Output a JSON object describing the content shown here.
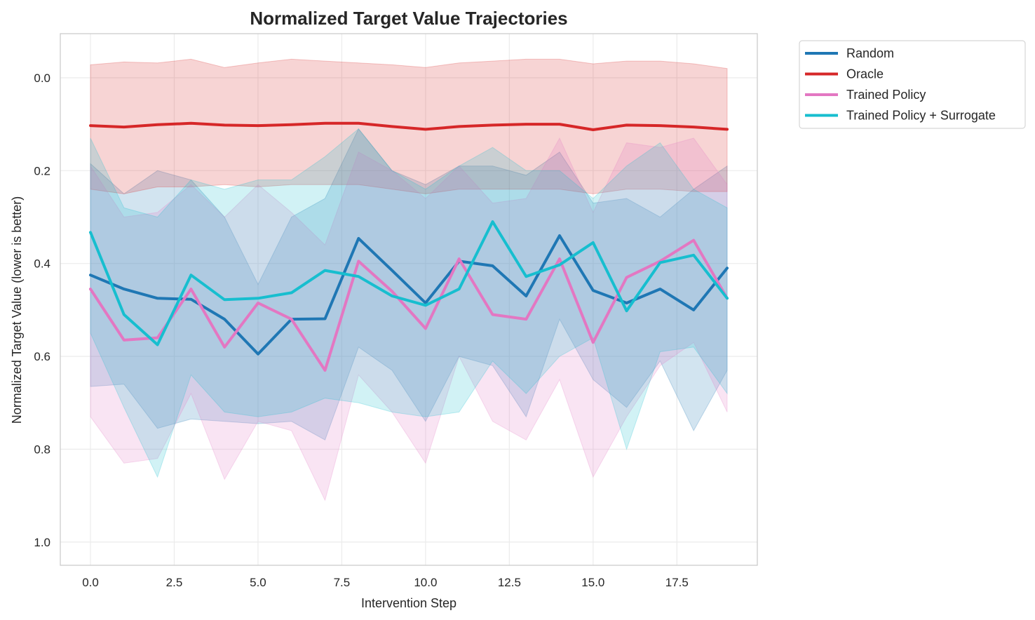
{
  "chart_data": {
    "type": "line",
    "title": "Normalized Target Value Trajectories",
    "xlabel": "Intervention Step",
    "ylabel": "Normalized Target Value (lower is better)",
    "xlim": [
      -0.9,
      19.9
    ],
    "ylim": [
      1.05,
      -0.095
    ],
    "y_inverted": true,
    "grid": true,
    "legend_position": "outside-top-right",
    "x_ticks": [
      0.0,
      2.5,
      5.0,
      7.5,
      10.0,
      12.5,
      15.0,
      17.5
    ],
    "x_tick_labels": [
      "0.0",
      "2.5",
      "5.0",
      "7.5",
      "10.0",
      "12.5",
      "15.0",
      "17.5"
    ],
    "y_ticks": [
      0.0,
      0.2,
      0.4,
      0.6,
      0.8,
      1.0
    ],
    "y_tick_labels": [
      "0.0",
      "0.2",
      "0.4",
      "0.6",
      "0.8",
      "1.0"
    ],
    "x": [
      0,
      1,
      2,
      3,
      4,
      5,
      6,
      7,
      8,
      9,
      10,
      11,
      12,
      13,
      14,
      15,
      16,
      17,
      18,
      19
    ],
    "series": [
      {
        "name": "Random",
        "color": "#1f77b4",
        "mean": [
          0.425,
          0.455,
          0.475,
          0.477,
          0.52,
          0.595,
          0.52,
          0.519,
          0.346,
          0.415,
          0.485,
          0.395,
          0.405,
          0.47,
          0.34,
          0.458,
          0.485,
          0.455,
          0.5,
          0.41
        ],
        "band_low": [
          0.185,
          0.25,
          0.2,
          0.22,
          0.3,
          0.445,
          0.3,
          0.26,
          0.11,
          0.2,
          0.23,
          0.19,
          0.19,
          0.21,
          0.16,
          0.27,
          0.26,
          0.3,
          0.24,
          0.19
        ],
        "band_high": [
          0.665,
          0.66,
          0.755,
          0.735,
          0.74,
          0.745,
          0.74,
          0.78,
          0.58,
          0.63,
          0.74,
          0.6,
          0.62,
          0.73,
          0.52,
          0.65,
          0.71,
          0.61,
          0.76,
          0.63
        ]
      },
      {
        "name": "Oracle",
        "color": "#d62728",
        "mean": [
          0.103,
          0.106,
          0.101,
          0.098,
          0.102,
          0.103,
          0.101,
          0.098,
          0.098,
          0.105,
          0.111,
          0.105,
          0.102,
          0.1,
          0.1,
          0.112,
          0.102,
          0.103,
          0.106,
          0.111
        ],
        "band_low": [
          -0.028,
          -0.034,
          -0.032,
          -0.04,
          -0.022,
          -0.032,
          -0.04,
          -0.036,
          -0.032,
          -0.028,
          -0.022,
          -0.032,
          -0.036,
          -0.04,
          -0.04,
          -0.03,
          -0.036,
          -0.036,
          -0.03,
          -0.02
        ],
        "band_high": [
          0.24,
          0.25,
          0.235,
          0.235,
          0.23,
          0.235,
          0.23,
          0.23,
          0.23,
          0.24,
          0.25,
          0.24,
          0.24,
          0.24,
          0.24,
          0.25,
          0.24,
          0.24,
          0.245,
          0.245
        ]
      },
      {
        "name": "Trained Policy",
        "color": "#e377c2",
        "mean": [
          0.455,
          0.565,
          0.56,
          0.455,
          0.58,
          0.485,
          0.52,
          0.63,
          0.395,
          0.46,
          0.54,
          0.39,
          0.51,
          0.52,
          0.39,
          0.57,
          0.43,
          0.395,
          0.35,
          0.475
        ],
        "band_low": [
          0.19,
          0.3,
          0.29,
          0.23,
          0.3,
          0.23,
          0.29,
          0.36,
          0.16,
          0.2,
          0.26,
          0.19,
          0.27,
          0.26,
          0.13,
          0.29,
          0.14,
          0.15,
          0.13,
          0.23
        ],
        "band_high": [
          0.73,
          0.83,
          0.82,
          0.68,
          0.865,
          0.74,
          0.76,
          0.91,
          0.64,
          0.72,
          0.83,
          0.6,
          0.74,
          0.78,
          0.65,
          0.86,
          0.73,
          0.62,
          0.57,
          0.72
        ]
      },
      {
        "name": "Trained Policy + Surrogate",
        "color": "#17becf",
        "mean": [
          0.333,
          0.51,
          0.575,
          0.425,
          0.478,
          0.475,
          0.463,
          0.415,
          0.428,
          0.47,
          0.49,
          0.455,
          0.31,
          0.428,
          0.403,
          0.355,
          0.502,
          0.398,
          0.382,
          0.475
        ],
        "band_low": [
          0.13,
          0.28,
          0.3,
          0.22,
          0.24,
          0.22,
          0.22,
          0.17,
          0.11,
          0.2,
          0.24,
          0.19,
          0.15,
          0.2,
          0.2,
          0.26,
          0.19,
          0.14,
          0.24,
          0.28
        ],
        "band_high": [
          0.55,
          0.71,
          0.86,
          0.64,
          0.72,
          0.73,
          0.72,
          0.69,
          0.7,
          0.72,
          0.73,
          0.72,
          0.61,
          0.68,
          0.6,
          0.56,
          0.8,
          0.59,
          0.58,
          0.68
        ]
      }
    ]
  }
}
